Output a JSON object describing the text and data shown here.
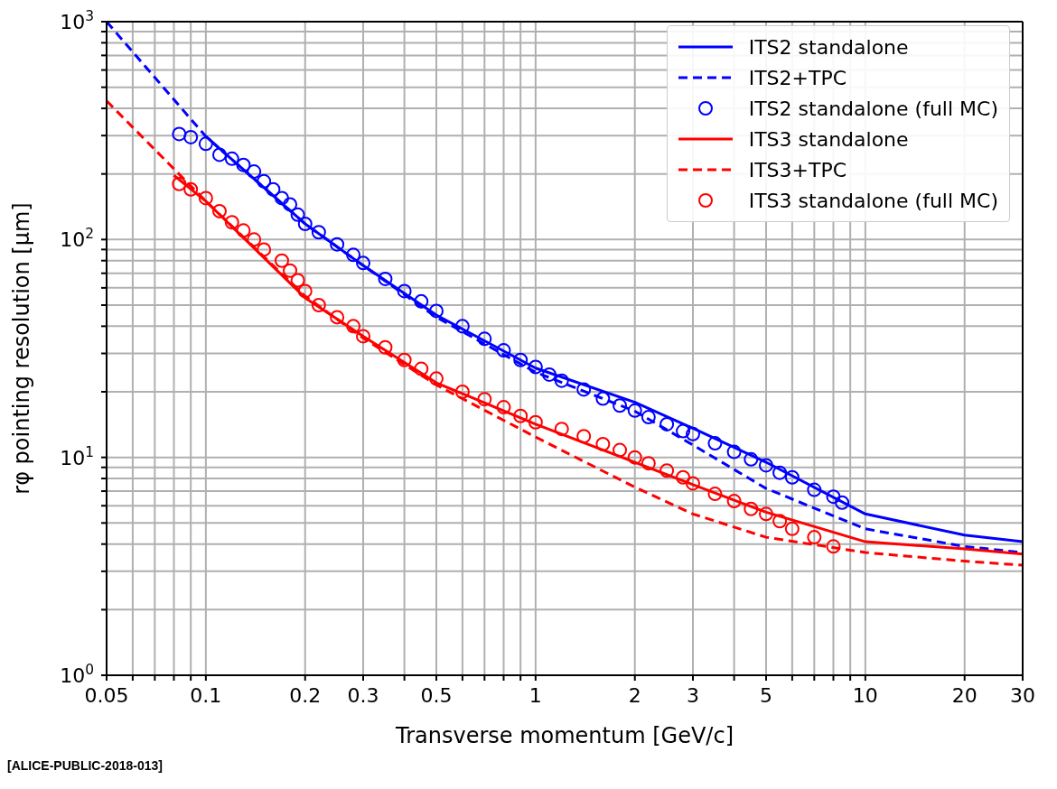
{
  "chart_data": {
    "type": "line",
    "xlabel": "Transverse momentum [GeV/c]",
    "ylabel": "rφ pointing resolution [μm]",
    "log": "xy",
    "grid": true,
    "legend": "top right",
    "xlim": [
      0.05,
      30
    ],
    "ylim": [
      1,
      1000
    ],
    "xticks": [
      0.05,
      {
        "value": 0.06,
        "label": null
      },
      {
        "value": 0.07,
        "label": null
      },
      {
        "value": 0.08,
        "label": null
      },
      {
        "value": 0.09,
        "label": null
      },
      0.1,
      0.2,
      0.3,
      {
        "value": 0.4,
        "label": null
      },
      0.5,
      {
        "value": 0.6,
        "label": null
      },
      {
        "value": 0.7,
        "label": null
      },
      {
        "value": 0.8,
        "label": null
      },
      {
        "value": 0.9,
        "label": null
      },
      1,
      2,
      3,
      {
        "value": 4,
        "label": null
      },
      5,
      {
        "value": 6,
        "label": null
      },
      {
        "value": 7,
        "label": null
      },
      {
        "value": 8,
        "label": null
      },
      {
        "value": 9,
        "label": null
      },
      10,
      20,
      30
    ],
    "yticks": [
      {
        "value": 1,
        "label": "10$^{0}$"
      },
      {
        "value": 2,
        "label": null
      },
      {
        "value": 3,
        "label": null
      },
      {
        "value": 4,
        "label": null
      },
      {
        "value": 5,
        "label": null
      },
      {
        "value": 6,
        "label": null
      },
      {
        "value": 7,
        "label": null
      },
      {
        "value": 8,
        "label": null
      },
      {
        "value": 9,
        "label": null
      },
      {
        "value": 10,
        "label": "10$^{1}$"
      },
      {
        "value": 20,
        "label": null
      },
      {
        "value": 30,
        "label": null
      },
      {
        "value": 40,
        "label": null
      },
      {
        "value": 50,
        "label": null
      },
      {
        "value": 60,
        "label": null
      },
      {
        "value": 70,
        "label": null
      },
      {
        "value": 80,
        "label": null
      },
      {
        "value": 90,
        "label": null
      },
      {
        "value": 100,
        "label": "10$^{2}$"
      },
      {
        "value": 200,
        "label": null
      },
      {
        "value": 300,
        "label": null
      },
      {
        "value": 400,
        "label": null
      },
      {
        "value": 500,
        "label": null
      },
      {
        "value": 600,
        "label": null
      },
      {
        "value": 700,
        "label": null
      },
      {
        "value": 800,
        "label": null
      },
      {
        "value": 900,
        "label": null
      },
      {
        "value": 1000,
        "label": "10$^{3}$"
      }
    ],
    "annotations": [
      "[ALICE-PUBLIC-2018-013]"
    ],
    "series": [
      {
        "name": "ITS2 standalone",
        "type": "line",
        "line_style": "solid",
        "marker": "none",
        "color": "#0000ff",
        "x": [
          0.1,
          0.2,
          0.3,
          0.5,
          1,
          2,
          3,
          5,
          10,
          20,
          30
        ],
        "values": [
          297,
          118,
          76,
          45,
          25.7,
          17.9,
          13.6,
          9.5,
          5.5,
          4.4,
          4.1
        ]
      },
      {
        "name": "ITS2+TPC",
        "type": "line",
        "line_style": "dashed",
        "marker": "none",
        "color": "#0000ff",
        "x": [
          0.05,
          0.1,
          0.2,
          0.3,
          0.5,
          1,
          2,
          3,
          5,
          10,
          20,
          30
        ],
        "values": [
          1000,
          297,
          118,
          76,
          44,
          24.6,
          16.3,
          11.4,
          7.2,
          4.7,
          3.9,
          3.66
        ]
      },
      {
        "name": "ITS2 standalone (full MC)",
        "type": "scatter",
        "marker": "circle",
        "color": "#0000ff",
        "x": [
          0.083,
          0.09,
          0.1,
          0.11,
          0.12,
          0.13,
          0.14,
          0.15,
          0.16,
          0.17,
          0.18,
          0.19,
          0.2,
          0.22,
          0.25,
          0.28,
          0.3,
          0.35,
          0.4,
          0.45,
          0.5,
          0.6,
          0.7,
          0.8,
          0.9,
          1,
          1.1,
          1.2,
          1.4,
          1.6,
          1.8,
          2,
          2.2,
          2.5,
          2.8,
          3,
          3.5,
          4,
          4.5,
          5,
          5.5,
          6,
          7,
          8,
          8.5
        ],
        "values": [
          305,
          295,
          275,
          245,
          235,
          220,
          205,
          185,
          170,
          155,
          145,
          130,
          118,
          108,
          95,
          85,
          78,
          66,
          58,
          52,
          47,
          40,
          35,
          31,
          28,
          26,
          24,
          22.5,
          20.5,
          18.6,
          17.3,
          16.4,
          15.3,
          14.2,
          13.2,
          12.8,
          11.6,
          10.6,
          9.8,
          9.2,
          8.5,
          8.1,
          7.1,
          6.6,
          6.2
        ]
      },
      {
        "name": "ITS3 standalone",
        "type": "line",
        "line_style": "solid",
        "marker": "none",
        "color": "#ff0000",
        "x": [
          0.08,
          0.1,
          0.2,
          0.3,
          0.5,
          1,
          2,
          3,
          5,
          10,
          20,
          30
        ],
        "values": [
          197,
          150,
          54,
          36,
          22,
          14.2,
          9.5,
          7.5,
          5.6,
          4.1,
          3.8,
          3.6
        ]
      },
      {
        "name": "ITS3+TPC",
        "type": "line",
        "line_style": "dashed",
        "marker": "none",
        "color": "#ff0000",
        "x": [
          0.05,
          0.1,
          0.2,
          0.3,
          0.5,
          1,
          2,
          3,
          5,
          10,
          20,
          30
        ],
        "values": [
          433,
          150,
          55,
          35.3,
          21.5,
          12.4,
          7.3,
          5.5,
          4.3,
          3.66,
          3.34,
          3.2
        ]
      },
      {
        "name": "ITS3 standalone (full MC)",
        "type": "scatter",
        "marker": "circle",
        "color": "#ff0000",
        "x": [
          0.083,
          0.09,
          0.1,
          0.11,
          0.12,
          0.13,
          0.14,
          0.15,
          0.17,
          0.18,
          0.19,
          0.2,
          0.22,
          0.25,
          0.28,
          0.3,
          0.35,
          0.4,
          0.45,
          0.5,
          0.6,
          0.7,
          0.8,
          0.9,
          1,
          1.2,
          1.4,
          1.6,
          1.8,
          2,
          2.2,
          2.5,
          2.8,
          3,
          3.5,
          4,
          4.5,
          5,
          5.5,
          6,
          7,
          8
        ],
        "values": [
          180,
          170,
          155,
          135,
          120,
          110,
          100,
          90,
          80,
          72,
          65,
          58,
          50,
          44,
          40,
          36,
          32,
          28,
          25.5,
          23,
          20,
          18.5,
          17,
          15.5,
          14.5,
          13.5,
          12.5,
          11.5,
          10.8,
          10,
          9.4,
          8.7,
          8.1,
          7.6,
          6.8,
          6.3,
          5.8,
          5.5,
          5.1,
          4.7,
          4.3,
          3.9
        ]
      }
    ]
  }
}
